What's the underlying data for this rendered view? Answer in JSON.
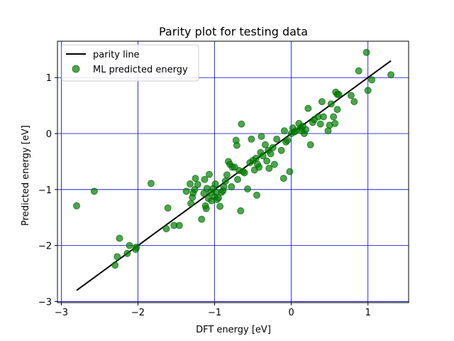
{
  "chart_data": {
    "type": "scatter",
    "title": "Parity plot for testing data",
    "xlabel": "DFT energy [eV]",
    "ylabel": "Predicted energy [eV]",
    "xlim": [
      -3.05,
      1.53
    ],
    "ylim": [
      -3.02,
      1.65
    ],
    "xticks": [
      -3,
      -2,
      -1,
      0,
      1
    ],
    "yticks": [
      -3,
      -2,
      -1,
      0,
      1
    ],
    "xtick_labels": [
      "−3",
      "−2",
      "−1",
      "0",
      "1"
    ],
    "ytick_labels": [
      "−3",
      "−2",
      "−1",
      "0",
      "1"
    ],
    "grid": true,
    "grid_color": "#0000cc",
    "legend_position": "top-left",
    "series": [
      {
        "name": "parity line",
        "kind": "line",
        "color": "#000000",
        "x": [
          -2.8,
          1.3
        ],
        "y": [
          -2.8,
          1.3
        ]
      },
      {
        "name": "ML predicted energy",
        "kind": "scatter",
        "color": "#008000",
        "points": [
          [
            -2.8,
            -1.29
          ],
          [
            -2.57,
            -1.03
          ],
          [
            -2.3,
            -2.35
          ],
          [
            -2.27,
            -2.2
          ],
          [
            -2.24,
            -1.87
          ],
          [
            -2.14,
            -2.14
          ],
          [
            -2.11,
            -2.0
          ],
          [
            -2.03,
            -2.07
          ],
          [
            -2.02,
            -2.03
          ],
          [
            -1.83,
            -0.89
          ],
          [
            -1.63,
            -1.7
          ],
          [
            -1.61,
            -1.33
          ],
          [
            -1.53,
            -1.64
          ],
          [
            -1.46,
            -1.64
          ],
          [
            -1.37,
            -1.03
          ],
          [
            -1.32,
            -0.9
          ],
          [
            -1.31,
            -1.25
          ],
          [
            -1.29,
            -1.14
          ],
          [
            -1.28,
            -1.06
          ],
          [
            -1.26,
            -1.0
          ],
          [
            -1.25,
            -0.8
          ],
          [
            -1.22,
            -0.91
          ],
          [
            -1.17,
            -1.53
          ],
          [
            -1.14,
            -1.07
          ],
          [
            -1.13,
            -0.82
          ],
          [
            -1.12,
            -1.29
          ],
          [
            -1.11,
            -1.34
          ],
          [
            -1.1,
            -0.98
          ],
          [
            -1.08,
            -1.16
          ],
          [
            -1.07,
            -0.73
          ],
          [
            -1.05,
            -1.05
          ],
          [
            -1.04,
            -1.2
          ],
          [
            -1.02,
            -0.98
          ],
          [
            -1.0,
            -1.13
          ],
          [
            -0.99,
            -0.9
          ],
          [
            -0.98,
            -1.05
          ],
          [
            -0.97,
            -1.18
          ],
          [
            -0.95,
            -1.15
          ],
          [
            -0.93,
            -1.3
          ],
          [
            -0.91,
            -1.05
          ],
          [
            -0.89,
            -1.02
          ],
          [
            -0.88,
            -0.95
          ],
          [
            -0.86,
            -0.85
          ],
          [
            -0.84,
            -0.74
          ],
          [
            -0.82,
            -0.5
          ],
          [
            -0.8,
            -0.55
          ],
          [
            -0.78,
            -0.95
          ],
          [
            -0.77,
            -0.6
          ],
          [
            -0.74,
            -0.6
          ],
          [
            -0.72,
            -0.12
          ],
          [
            -0.71,
            -0.21
          ],
          [
            -0.7,
            -0.82
          ],
          [
            -0.68,
            -0.66
          ],
          [
            -0.66,
            -1.38
          ],
          [
            -0.65,
            0.17
          ],
          [
            -0.63,
            -0.68
          ],
          [
            -0.61,
            -0.7
          ],
          [
            -0.57,
            -0.99
          ],
          [
            -0.54,
            -0.52
          ],
          [
            -0.52,
            -0.1
          ],
          [
            -0.5,
            -0.48
          ],
          [
            -0.48,
            -0.65
          ],
          [
            -0.46,
            -0.44
          ],
          [
            -0.45,
            -1.1
          ],
          [
            -0.44,
            -0.55
          ],
          [
            -0.42,
            -0.6
          ],
          [
            -0.4,
            -0.34
          ],
          [
            -0.39,
            -0.05
          ],
          [
            -0.37,
            -0.4
          ],
          [
            -0.34,
            -0.2
          ],
          [
            -0.32,
            -0.49
          ],
          [
            -0.3,
            -0.3
          ],
          [
            -0.29,
            -0.62
          ],
          [
            -0.27,
            -0.36
          ],
          [
            -0.24,
            -0.25
          ],
          [
            -0.22,
            -0.55
          ],
          [
            -0.19,
            -0.1
          ],
          [
            -0.13,
            -0.3
          ],
          [
            -0.1,
            -0.8
          ],
          [
            -0.09,
            0.05
          ],
          [
            -0.07,
            -0.15
          ],
          [
            -0.05,
            -0.12
          ],
          [
            -0.02,
            -0.68
          ],
          [
            0.0,
            0.0
          ],
          [
            0.02,
            0.1
          ],
          [
            0.04,
            0.03
          ],
          [
            0.06,
            0.05
          ],
          [
            0.1,
            0.18
          ],
          [
            0.12,
            0.1
          ],
          [
            0.14,
            0.05
          ],
          [
            0.15,
            0.13
          ],
          [
            0.17,
            0.0
          ],
          [
            0.19,
            0.07
          ],
          [
            0.22,
            0.45
          ],
          [
            0.25,
            -0.2
          ],
          [
            0.28,
            0.2
          ],
          [
            0.3,
            0.25
          ],
          [
            0.35,
            0.3
          ],
          [
            0.38,
            0.17
          ],
          [
            0.4,
            0.57
          ],
          [
            0.42,
            0.3
          ],
          [
            0.48,
            0.05
          ],
          [
            0.5,
            0.15
          ],
          [
            0.52,
            0.53
          ],
          [
            0.55,
            0.3
          ],
          [
            0.57,
            0.18
          ],
          [
            0.58,
            0.74
          ],
          [
            0.6,
            0.7
          ],
          [
            0.6,
            0.43
          ],
          [
            0.62,
            0.7
          ],
          [
            0.78,
            0.68
          ],
          [
            0.82,
            0.57
          ],
          [
            0.88,
            1.12
          ],
          [
            0.98,
            1.45
          ],
          [
            1.0,
            0.77
          ],
          [
            1.05,
            0.96
          ],
          [
            1.3,
            1.05
          ]
        ]
      }
    ]
  }
}
